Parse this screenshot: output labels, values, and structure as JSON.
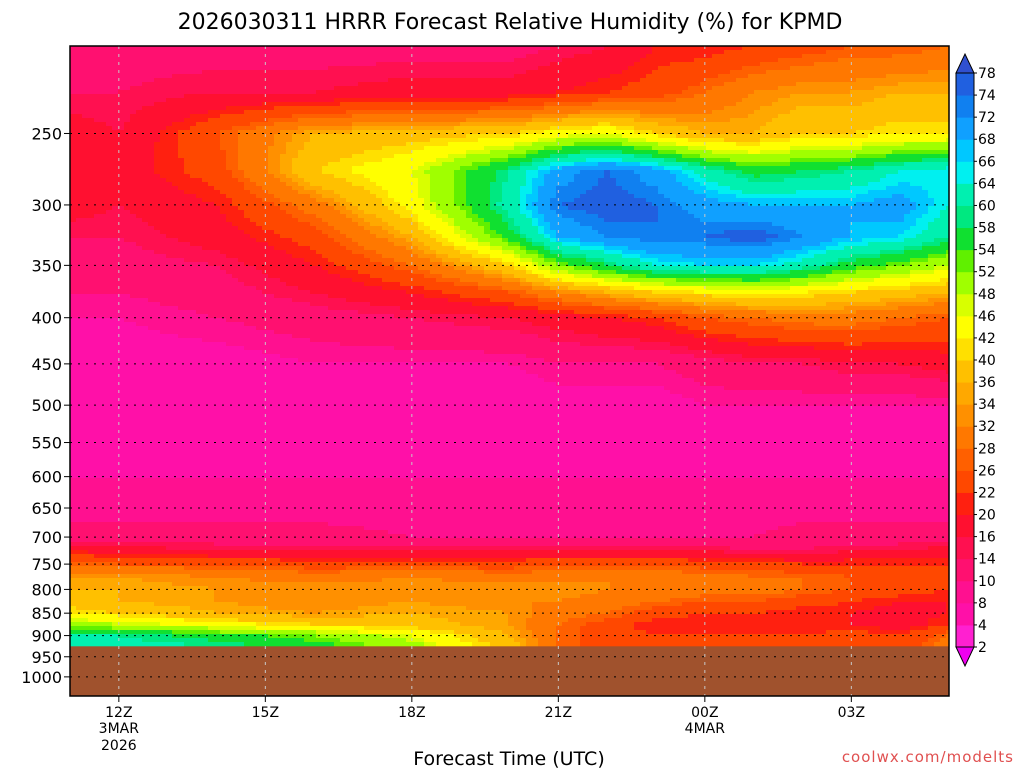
{
  "chart_data": {
    "type": "heatmap",
    "title": "2026030311 HRRR Forecast Relative Humidity (%) for KPMD",
    "xlabel": "Forecast Time (UTC)",
    "ylabel": "",
    "credit": "coolwx.com/modelts",
    "x_ticks": [
      {
        "label": "12Z",
        "sub": [
          "3MAR",
          "2026"
        ],
        "hour": 0
      },
      {
        "label": "15Z",
        "sub": [],
        "hour": 3
      },
      {
        "label": "18Z",
        "sub": [],
        "hour": 6
      },
      {
        "label": "21Z",
        "sub": [],
        "hour": 9
      },
      {
        "label": "00Z",
        "sub": [
          "4MAR"
        ],
        "hour": 12
      },
      {
        "label": "03Z",
        "sub": [],
        "hour": 15
      }
    ],
    "x_range_hours": [
      -1,
      17
    ],
    "y_ticks": [
      250,
      300,
      350,
      400,
      450,
      500,
      550,
      600,
      650,
      700,
      750,
      800,
      850,
      900,
      950,
      1000
    ],
    "y_range_hpa": [
      200,
      1050
    ],
    "ground_level_hpa": 925,
    "grid": true,
    "colorbar": {
      "position": "right",
      "levels": [
        2,
        4,
        8,
        10,
        14,
        16,
        20,
        22,
        26,
        28,
        32,
        34,
        36,
        40,
        42,
        46,
        48,
        52,
        54,
        58,
        60,
        64,
        66,
        68,
        72,
        74,
        78
      ],
      "colors": [
        "#f000f0",
        "#ff20d0",
        "#ff10a8",
        "#ff1090",
        "#ff1070",
        "#ff1050",
        "#ff1030",
        "#ff2010",
        "#ff4800",
        "#ff6000",
        "#ff7800",
        "#ff9000",
        "#ffa800",
        "#ffc000",
        "#ffe000",
        "#ffff00",
        "#d8ff00",
        "#a0ff00",
        "#60f000",
        "#10e030",
        "#00e880",
        "#00f0b0",
        "#00f0f0",
        "#00c8ff",
        "#10a0ff",
        "#1080f0",
        "#2060e0",
        "#3050d0"
      ],
      "ground_color": "#a0522d"
    },
    "values_desc": {
      "hours": [
        -1,
        0,
        2,
        4,
        6,
        8,
        9,
        10,
        11,
        12,
        13,
        14,
        15,
        16,
        17
      ],
      "levels_hpa": [
        200,
        225,
        250,
        275,
        300,
        325,
        350,
        375,
        400,
        450,
        500,
        550,
        600,
        650,
        700,
        725,
        750,
        775,
        800,
        825,
        850,
        875,
        900,
        925
      ],
      "rh": [
        [
          12,
          12,
          12,
          12,
          12,
          12,
          14,
          16,
          20,
          20,
          22,
          24,
          26,
          26,
          28
        ],
        [
          14,
          14,
          16,
          16,
          18,
          18,
          20,
          22,
          24,
          28,
          32,
          34,
          34,
          36,
          36
        ],
        [
          18,
          16,
          26,
          36,
          38,
          40,
          44,
          46,
          40,
          36,
          36,
          40,
          40,
          42,
          42
        ],
        [
          20,
          18,
          24,
          40,
          46,
          60,
          70,
          74,
          70,
          62,
          56,
          58,
          60,
          64,
          66
        ],
        [
          18,
          16,
          20,
          30,
          44,
          62,
          74,
          76,
          74,
          70,
          68,
          68,
          68,
          70,
          64
        ],
        [
          14,
          14,
          18,
          24,
          36,
          56,
          68,
          72,
          74,
          74,
          76,
          72,
          68,
          66,
          60
        ],
        [
          12,
          12,
          14,
          20,
          28,
          40,
          52,
          58,
          64,
          66,
          66,
          62,
          56,
          52,
          48
        ],
        [
          10,
          10,
          12,
          16,
          20,
          26,
          32,
          36,
          40,
          42,
          44,
          42,
          40,
          38,
          36
        ],
        [
          8,
          8,
          10,
          12,
          14,
          16,
          18,
          20,
          22,
          26,
          28,
          30,
          30,
          28,
          26
        ],
        [
          6,
          6,
          6,
          8,
          8,
          8,
          10,
          10,
          10,
          12,
          14,
          14,
          16,
          16,
          18
        ],
        [
          4,
          4,
          4,
          4,
          4,
          4,
          6,
          6,
          6,
          8,
          8,
          8,
          8,
          8,
          8
        ],
        [
          6,
          6,
          6,
          6,
          6,
          6,
          6,
          6,
          6,
          6,
          6,
          6,
          6,
          6,
          6
        ],
        [
          8,
          8,
          8,
          8,
          8,
          8,
          8,
          8,
          8,
          8,
          8,
          8,
          8,
          8,
          8
        ],
        [
          8,
          8,
          8,
          8,
          8,
          8,
          8,
          8,
          8,
          8,
          8,
          8,
          8,
          8,
          8
        ],
        [
          12,
          12,
          12,
          12,
          10,
          10,
          10,
          10,
          10,
          10,
          10,
          12,
          12,
          12,
          12
        ],
        [
          20,
          18,
          16,
          16,
          16,
          16,
          16,
          16,
          16,
          16,
          14,
          14,
          16,
          16,
          18
        ],
        [
          28,
          26,
          26,
          24,
          24,
          24,
          26,
          26,
          26,
          24,
          24,
          22,
          22,
          22,
          22
        ],
        [
          34,
          34,
          32,
          30,
          32,
          30,
          30,
          32,
          30,
          30,
          28,
          28,
          26,
          26,
          24
        ],
        [
          36,
          36,
          34,
          34,
          34,
          34,
          34,
          32,
          32,
          30,
          30,
          28,
          26,
          24,
          22
        ],
        [
          38,
          36,
          34,
          32,
          34,
          32,
          32,
          30,
          28,
          26,
          26,
          24,
          22,
          20,
          20
        ],
        [
          42,
          40,
          36,
          34,
          36,
          34,
          30,
          28,
          24,
          22,
          22,
          20,
          20,
          18,
          20
        ],
        [
          50,
          48,
          44,
          40,
          38,
          34,
          28,
          24,
          20,
          20,
          20,
          20,
          20,
          18,
          22
        ],
        [
          62,
          60,
          56,
          52,
          46,
          36,
          28,
          24,
          22,
          22,
          22,
          22,
          24,
          22,
          28
        ],
        [
          64,
          62,
          60,
          56,
          50,
          38,
          28,
          24,
          22,
          22,
          22,
          24,
          26,
          24,
          30
        ]
      ]
    }
  }
}
